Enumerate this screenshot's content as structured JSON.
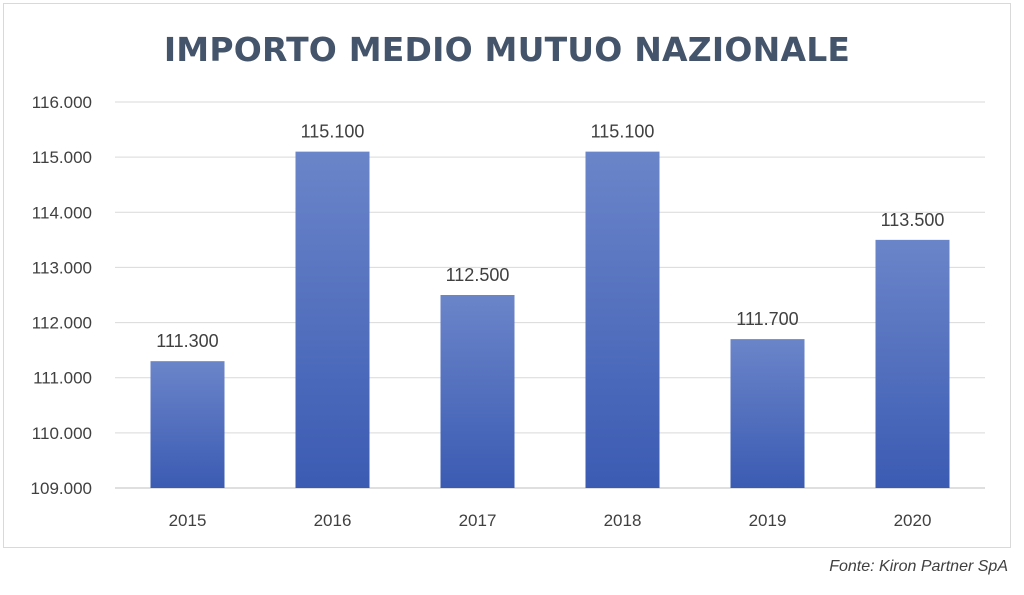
{
  "chart_data": {
    "type": "bar",
    "title": "IMPORTO MEDIO MUTUO NAZIONALE",
    "categories": [
      "2015",
      "2016",
      "2017",
      "2018",
      "2019",
      "2020"
    ],
    "values": [
      111300,
      115100,
      112500,
      115100,
      111700,
      113500
    ],
    "data_labels": [
      "111.300",
      "115.100",
      "112.500",
      "115.100",
      "111.700",
      "113.500"
    ],
    "yticks": [
      "109.000",
      "110.000",
      "111.000",
      "112.000",
      "113.000",
      "114.000",
      "115.000",
      "116.000"
    ],
    "ylim": [
      109000,
      116000
    ],
    "ytick_step": 1000,
    "grid": true,
    "legend": "none",
    "bar_color_top": "#6b85c9",
    "bar_color_bottom": "#3b5bb3"
  },
  "source_note": "Fonte: Kiron Partner SpA"
}
